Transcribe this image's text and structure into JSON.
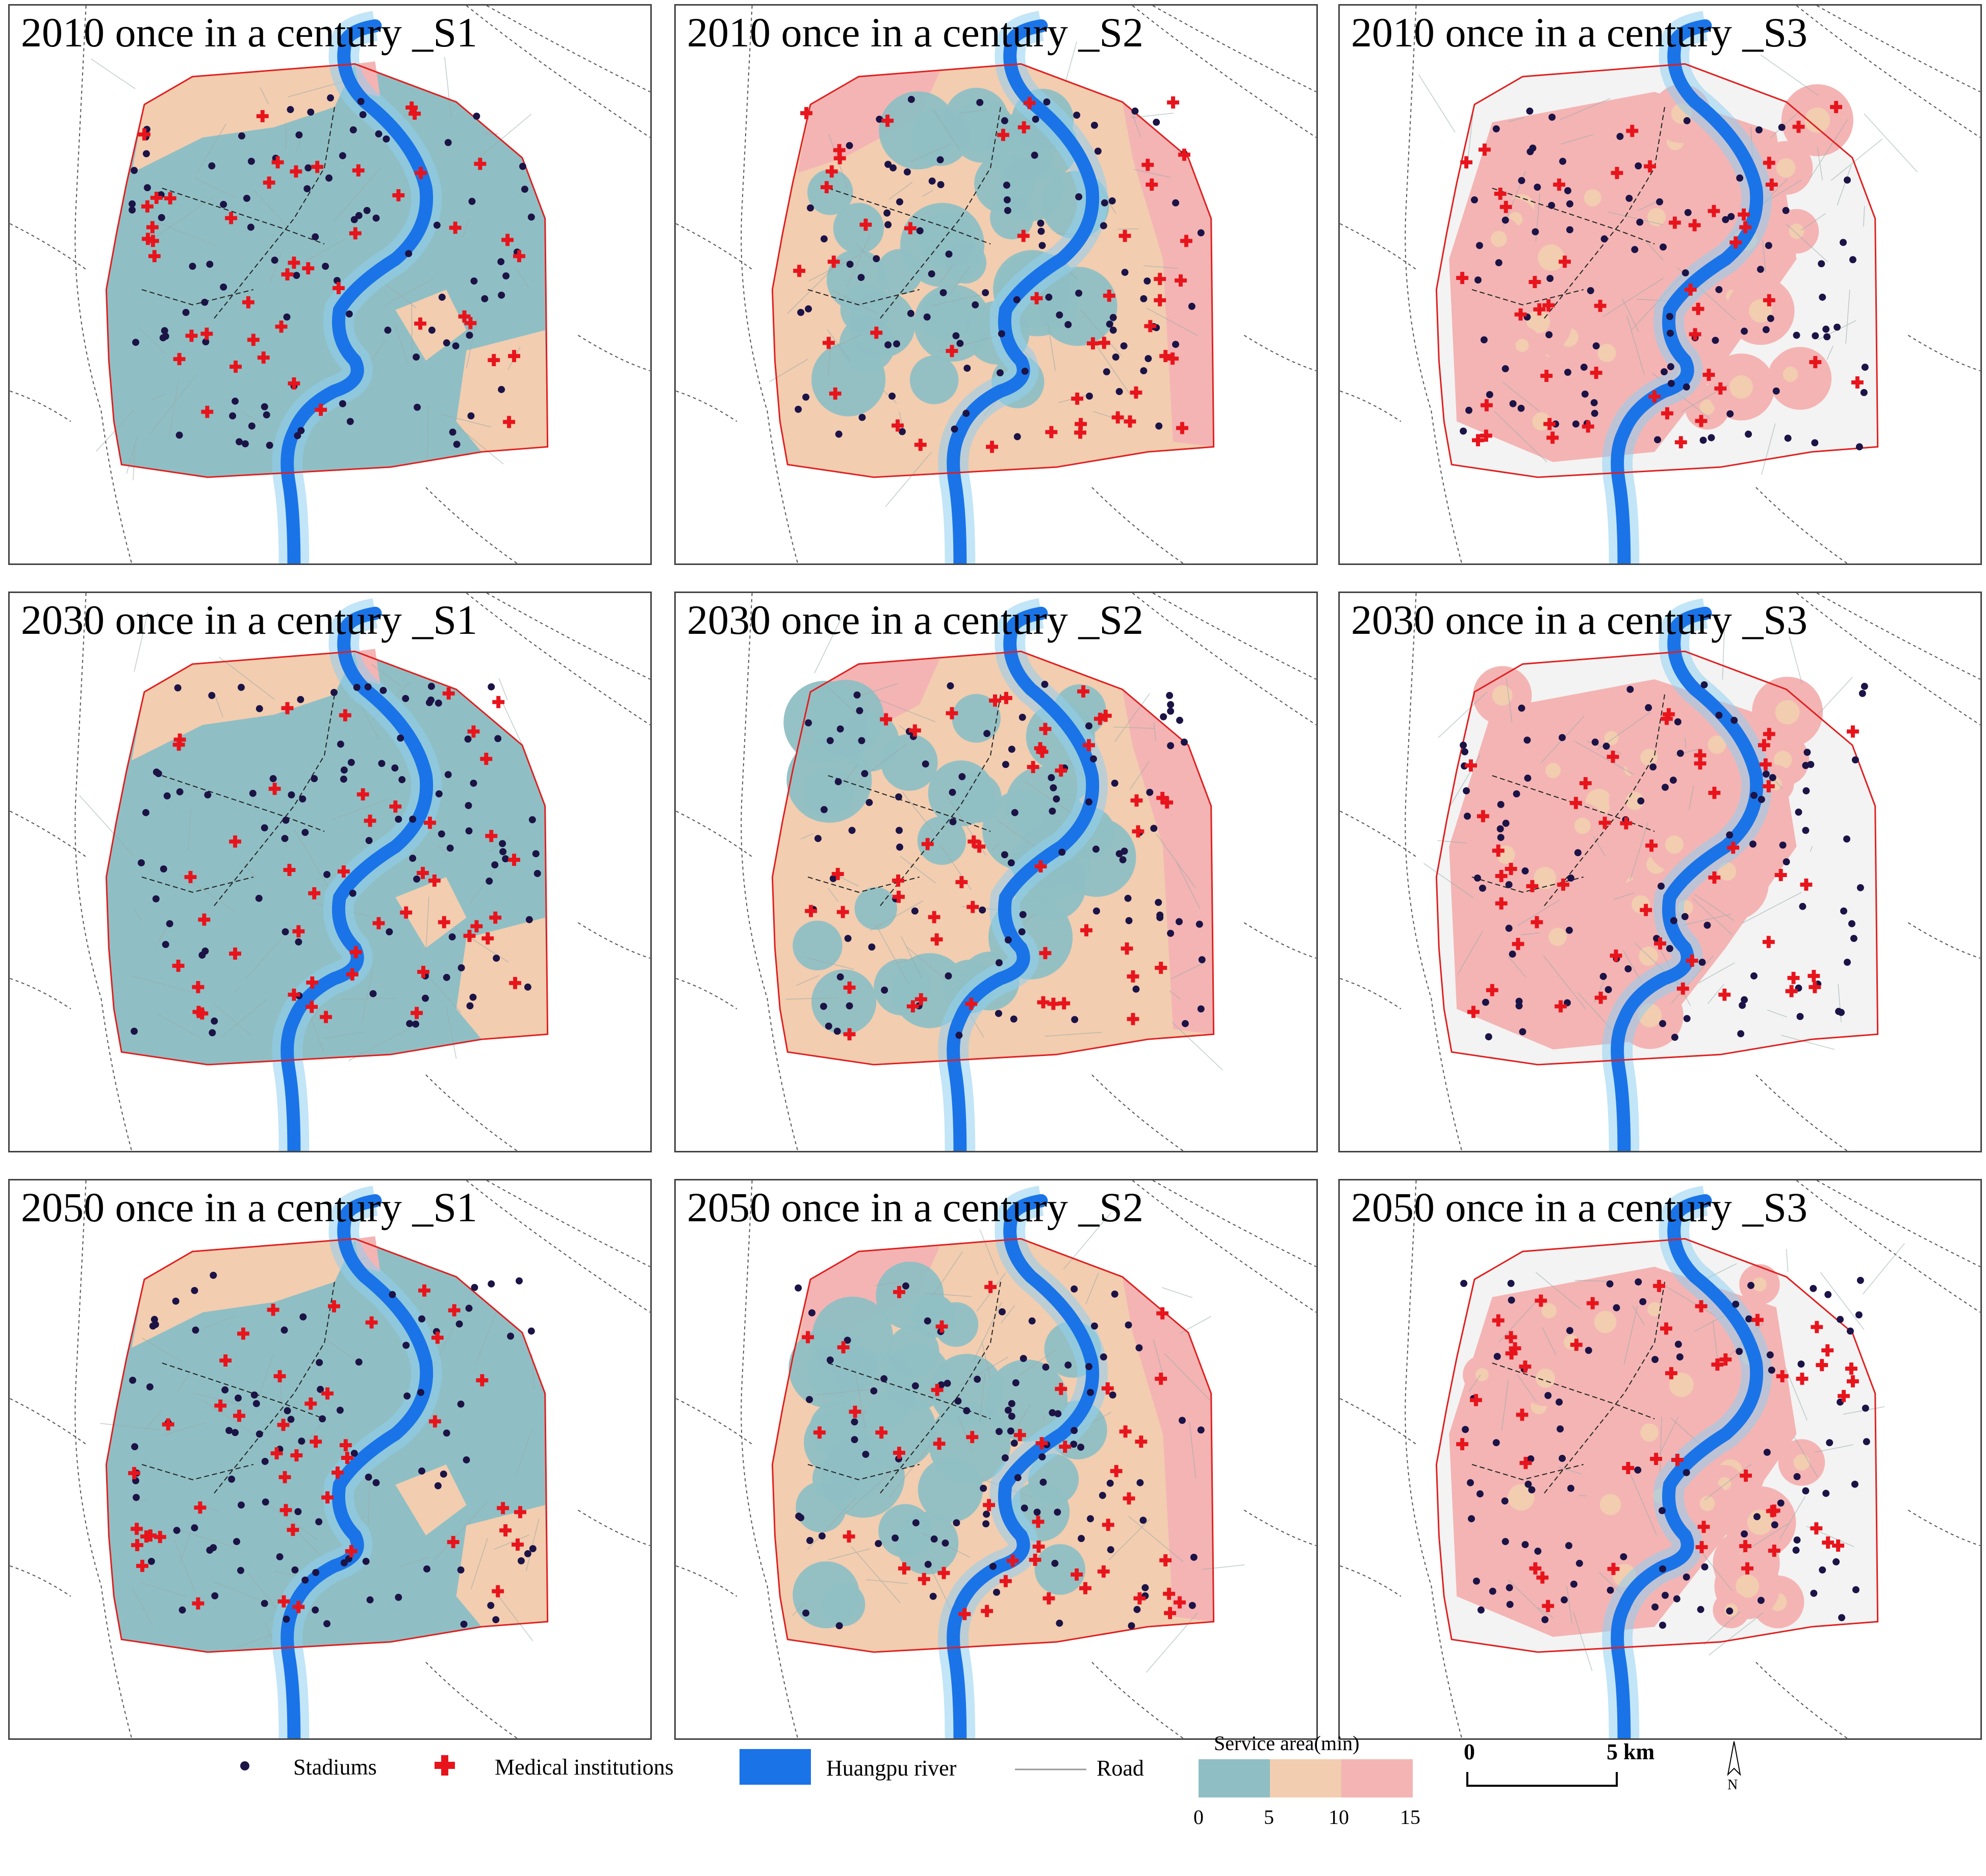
{
  "panels": [
    {
      "title": "2010 once in a century _S1",
      "scenario": "S1",
      "year": "2010"
    },
    {
      "title": "2010 once in a century _S2",
      "scenario": "S2",
      "year": "2010"
    },
    {
      "title": "2010 once in a century _S3",
      "scenario": "S3",
      "year": "2010"
    },
    {
      "title": "2030 once in a century _S1",
      "scenario": "S1",
      "year": "2030"
    },
    {
      "title": "2030 once in a century _S2",
      "scenario": "S2",
      "year": "2030"
    },
    {
      "title": "2030 once in a century _S3",
      "scenario": "S3",
      "year": "2030"
    },
    {
      "title": "2050 once in a century _S1",
      "scenario": "S1",
      "year": "2050"
    },
    {
      "title": "2050 once in a century _S2",
      "scenario": "S2",
      "year": "2050"
    },
    {
      "title": "2050 once in a century _S3",
      "scenario": "S3",
      "year": "2050"
    }
  ],
  "legend": {
    "stadiums": "Stadiums",
    "medical": "Medical institutions",
    "river": "Huangpu river",
    "road": "Road",
    "service_title": "Service area(min)",
    "ticks": [
      "0",
      "5",
      "10",
      "15"
    ],
    "scale_start": "0",
    "scale_end": "5 km",
    "north": "N"
  },
  "colors": {
    "band_0_5": "#8fbfc4",
    "band_5_10": "#f2cdb0",
    "band_10_15": "#f4b4b4",
    "river": "#1a74e8",
    "stadium": "#1c1346",
    "medical": "#e8141c",
    "boundary": "#e02020"
  }
}
